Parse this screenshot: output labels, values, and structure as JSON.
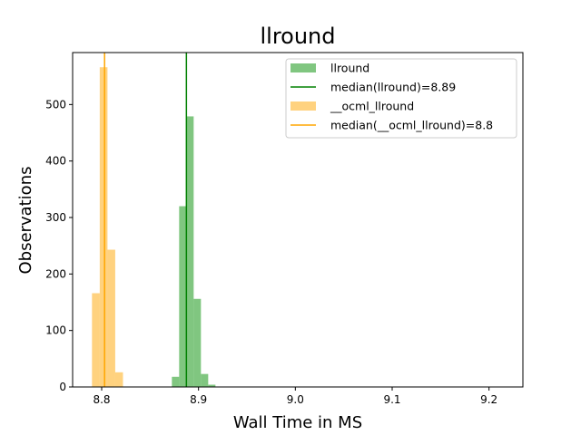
{
  "chart_data": {
    "type": "histogram",
    "title": "llround",
    "xlabel": "Wall Time in MS",
    "ylabel": "Observations",
    "xlim": [
      8.77,
      9.235
    ],
    "ylim": [
      0,
      592
    ],
    "x_ticks": [
      {
        "value": 8.8,
        "label": "8.8"
      },
      {
        "value": 8.9,
        "label": "8.9"
      },
      {
        "value": 9.0,
        "label": "9.0"
      },
      {
        "value": 9.1,
        "label": "9.1"
      },
      {
        "value": 9.2,
        "label": "9.2"
      }
    ],
    "y_ticks": [
      {
        "value": 0,
        "label": "0"
      },
      {
        "value": 100,
        "label": "100"
      },
      {
        "value": 200,
        "label": "200"
      },
      {
        "value": 300,
        "label": "300"
      },
      {
        "value": 400,
        "label": "400"
      },
      {
        "value": 500,
        "label": "500"
      }
    ],
    "grid": false,
    "legend_position": "top-right",
    "series": [
      {
        "name": "llround",
        "color": "#2ca02c",
        "opacity": 0.6,
        "bins": [
          {
            "x0": 8.8725,
            "x1": 8.88,
            "count": 18
          },
          {
            "x0": 8.88,
            "x1": 8.8875,
            "count": 320
          },
          {
            "x0": 8.8875,
            "x1": 8.895,
            "count": 479
          },
          {
            "x0": 8.895,
            "x1": 8.9025,
            "count": 156
          },
          {
            "x0": 8.9025,
            "x1": 8.91,
            "count": 23
          },
          {
            "x0": 8.91,
            "x1": 8.9175,
            "count": 4
          }
        ],
        "median": {
          "label": "median(llround)=8.89",
          "value": 8.8875,
          "color": "#008000"
        }
      },
      {
        "name": "__ocml_llround",
        "color": "#ffa500",
        "opacity": 0.5,
        "bins": [
          {
            "x0": 8.79,
            "x1": 8.798,
            "count": 166
          },
          {
            "x0": 8.798,
            "x1": 8.806,
            "count": 566
          },
          {
            "x0": 8.806,
            "x1": 8.814,
            "count": 243
          },
          {
            "x0": 8.814,
            "x1": 8.822,
            "count": 26
          }
        ],
        "median": {
          "label": "median(__ocml_llround)=8.8",
          "value": 8.803,
          "color": "#ffa500"
        }
      }
    ],
    "legend": [
      {
        "label": "llround",
        "kind": "patch",
        "series": 0
      },
      {
        "label": "median(llround)=8.89",
        "kind": "line",
        "series": 0
      },
      {
        "label": "__ocml_llround",
        "kind": "patch",
        "series": 1
      },
      {
        "label": "median(__ocml_llround)=8.8",
        "kind": "line",
        "series": 1
      }
    ]
  }
}
